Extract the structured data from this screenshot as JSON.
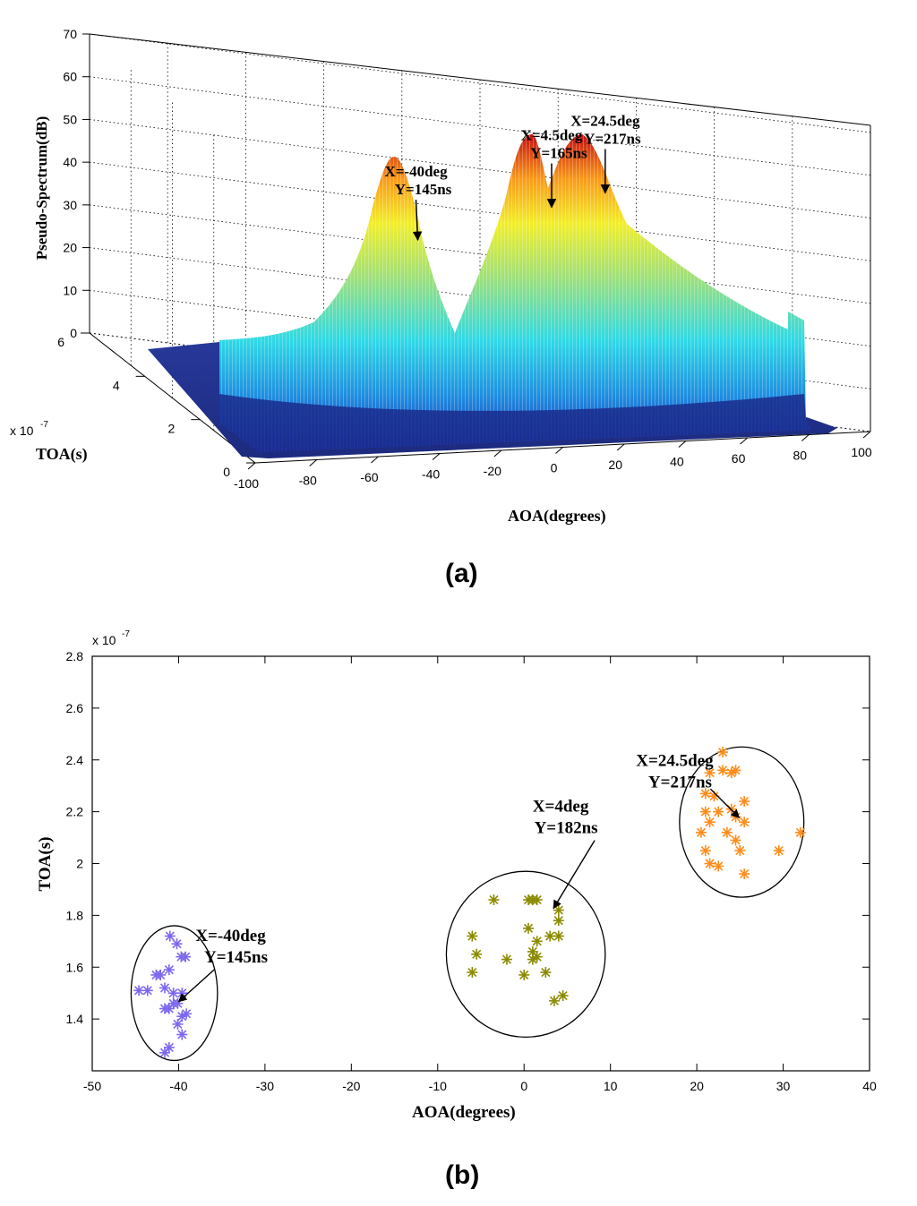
{
  "chart_data": [
    {
      "panel": "(a)",
      "type": "surface",
      "xlabel": "AOA(degrees)",
      "ylabel": "TOA(s)",
      "zlabel": "Pseudo-Spectrum(dB)",
      "y_exponent": "x 10",
      "y_exponent_power": "-7",
      "xlim": [
        -100,
        100
      ],
      "xticks": [
        "-100",
        "-80",
        "-60",
        "-40",
        "-20",
        "0",
        "20",
        "40",
        "60",
        "80",
        "100"
      ],
      "ylim": [
        0,
        6
      ],
      "yticks": [
        "0",
        "2",
        "4",
        "6"
      ],
      "zlim": [
        0,
        70
      ],
      "zticks": [
        "0",
        "10",
        "20",
        "30",
        "40",
        "50",
        "60",
        "70"
      ],
      "grid": true,
      "colormap": "jet",
      "peaks": [
        {
          "aoa": -40,
          "toa_ns": 145,
          "peak_db": 42,
          "label_x": "X=-40deg",
          "label_y": "Y=145ns"
        },
        {
          "aoa": 4.5,
          "toa_ns": 165,
          "peak_db": 47,
          "label_x": "X=4.5deg",
          "label_y": "Y=165ns"
        },
        {
          "aoa": 24.5,
          "toa_ns": 217,
          "peak_db": 47,
          "label_x": "X=24.5deg",
          "label_y": "Y=217ns"
        }
      ]
    },
    {
      "panel": "(b)",
      "type": "scatter",
      "xlabel": "AOA(degrees)",
      "ylabel": "TOA(s)",
      "y_exponent": "x 10",
      "y_exponent_power": "-7",
      "xlim": [
        -50,
        40
      ],
      "xticks": [
        "-50",
        "-40",
        "-30",
        "-20",
        "-10",
        "0",
        "10",
        "20",
        "30",
        "40"
      ],
      "ylim": [
        1.2,
        2.8
      ],
      "yticks": [
        "1.4",
        "1.6",
        "1.8",
        "2",
        "2.2",
        "2.4",
        "2.6",
        "2.8"
      ],
      "series": [
        {
          "color": "#7b68ee",
          "cluster": {
            "cx": -40.5,
            "cy": 1.5,
            "rx": 5,
            "ry": 0.26
          },
          "annotation": {
            "line1": "X=-40deg",
            "line2": "Y=145ns"
          },
          "points": [
            [
              -41,
              1.72
            ],
            [
              -40.2,
              1.69
            ],
            [
              -39.7,
              1.64
            ],
            [
              -39.2,
              1.64
            ],
            [
              -42.1,
              1.57
            ],
            [
              -42.6,
              1.57
            ],
            [
              -41.1,
              1.59
            ],
            [
              -44.6,
              1.51
            ],
            [
              -43.6,
              1.51
            ],
            [
              -41.6,
              1.52
            ],
            [
              -40.6,
              1.5
            ],
            [
              -39.6,
              1.5
            ],
            [
              -41.6,
              1.44
            ],
            [
              -40.6,
              1.46
            ],
            [
              -41.1,
              1.44
            ],
            [
              -39.6,
              1.41
            ],
            [
              -39.1,
              1.42
            ],
            [
              -40.1,
              1.38
            ],
            [
              -39.6,
              1.34
            ],
            [
              -41.1,
              1.29
            ],
            [
              -41.6,
              1.27
            ],
            [
              -40.1,
              1.46
            ]
          ]
        },
        {
          "color": "#8b8b00",
          "cluster": {
            "cx": 0.2,
            "cy": 1.65,
            "rx": 9.2,
            "ry": 0.32
          },
          "annotation": {
            "line1": "X=4deg",
            "line2": "Y=182ns"
          },
          "points": [
            [
              -3.5,
              1.86
            ],
            [
              0.5,
              1.86
            ],
            [
              1.0,
              1.86
            ],
            [
              1.5,
              1.86
            ],
            [
              4.0,
              1.82
            ],
            [
              4.0,
              1.78
            ],
            [
              3.0,
              1.72
            ],
            [
              4.0,
              1.72
            ],
            [
              -6.0,
              1.72
            ],
            [
              0.5,
              1.75
            ],
            [
              1.5,
              1.7
            ],
            [
              -5.5,
              1.65
            ],
            [
              1.0,
              1.66
            ],
            [
              1.5,
              1.64
            ],
            [
              1.0,
              1.63
            ],
            [
              -2.0,
              1.63
            ],
            [
              -6.0,
              1.58
            ],
            [
              0.0,
              1.57
            ],
            [
              2.5,
              1.58
            ],
            [
              4.5,
              1.49
            ],
            [
              3.5,
              1.47
            ]
          ]
        },
        {
          "color": "#ff8c1a",
          "cluster": {
            "cx": 25.2,
            "cy": 2.16,
            "rx": 7.2,
            "ry": 0.29
          },
          "annotation": {
            "line1": "X=24.5deg",
            "line2": "Y=217ns"
          },
          "points": [
            [
              23.0,
              2.43
            ],
            [
              21.5,
              2.35
            ],
            [
              23.0,
              2.36
            ],
            [
              24.0,
              2.35
            ],
            [
              24.5,
              2.36
            ],
            [
              21.0,
              2.27
            ],
            [
              22.0,
              2.26
            ],
            [
              25.5,
              2.24
            ],
            [
              21.0,
              2.2
            ],
            [
              22.5,
              2.2
            ],
            [
              24.0,
              2.21
            ],
            [
              21.5,
              2.16
            ],
            [
              24.5,
              2.18
            ],
            [
              25.5,
              2.16
            ],
            [
              32.0,
              2.12
            ],
            [
              20.5,
              2.12
            ],
            [
              23.5,
              2.12
            ],
            [
              24.5,
              2.09
            ],
            [
              21.0,
              2.05
            ],
            [
              25.0,
              2.05
            ],
            [
              29.5,
              2.05
            ],
            [
              21.5,
              2.0
            ],
            [
              22.5,
              1.99
            ],
            [
              25.5,
              1.96
            ]
          ]
        }
      ]
    }
  ]
}
